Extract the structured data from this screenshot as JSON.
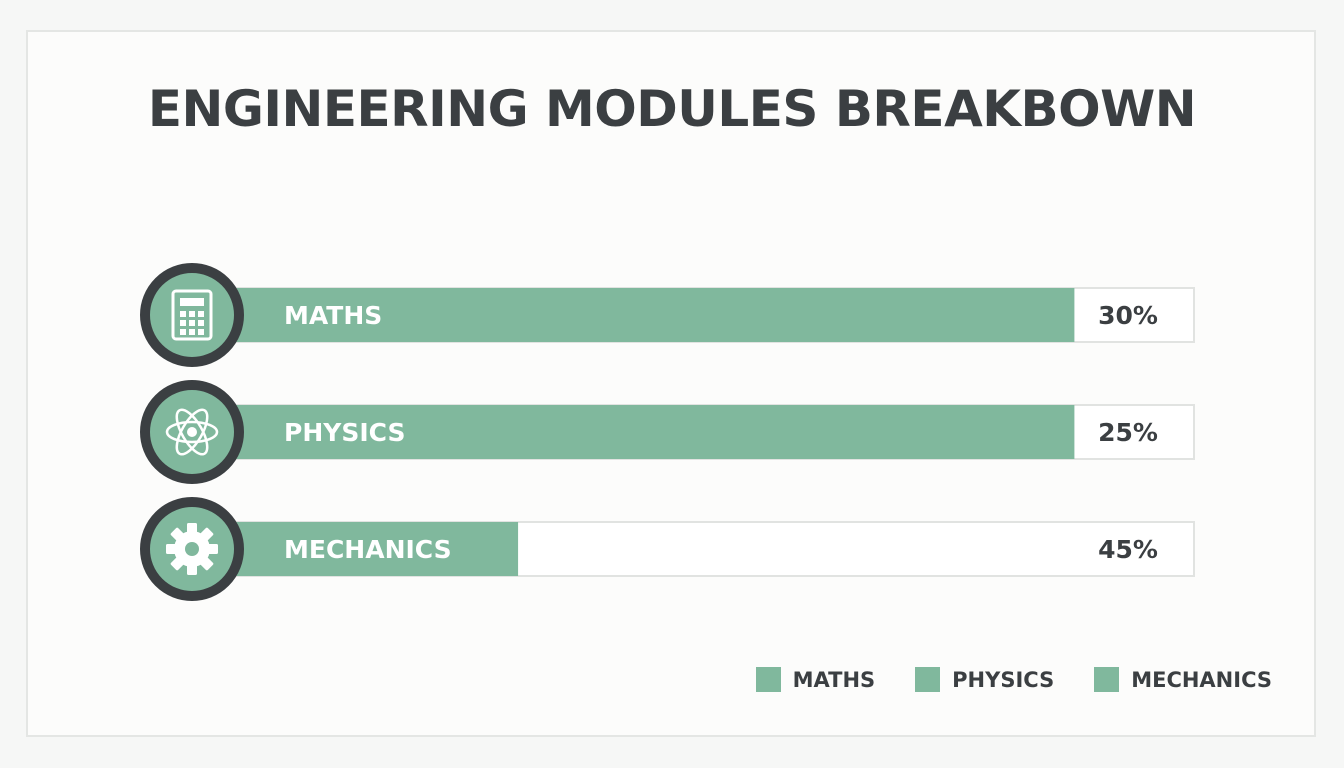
{
  "chart_data": {
    "type": "bar",
    "orientation": "horizontal",
    "title": "ENGINEERING MODULES BREAKBOWN",
    "categories": [
      "MATHS",
      "PHYSICS",
      "MECHANICS"
    ],
    "values": [
      30,
      25,
      45
    ],
    "value_labels": [
      "30%",
      "25%",
      "45%"
    ],
    "bar_fill_fractions": [
      0.9,
      0.9,
      0.33
    ],
    "icons": [
      "calculator-icon",
      "atom-icon",
      "gear-icon"
    ],
    "legend": {
      "placement": "bottom-right",
      "entries": [
        "MATHS",
        "PHYSICS",
        "MECHANICS"
      ]
    },
    "grid": false
  },
  "colors": {
    "bar": "#80b89d",
    "icon_ring": "#3b3f42",
    "icon_bg": "#80b89d",
    "track_border": "#e1e3e1",
    "text": "#3b3f42"
  }
}
